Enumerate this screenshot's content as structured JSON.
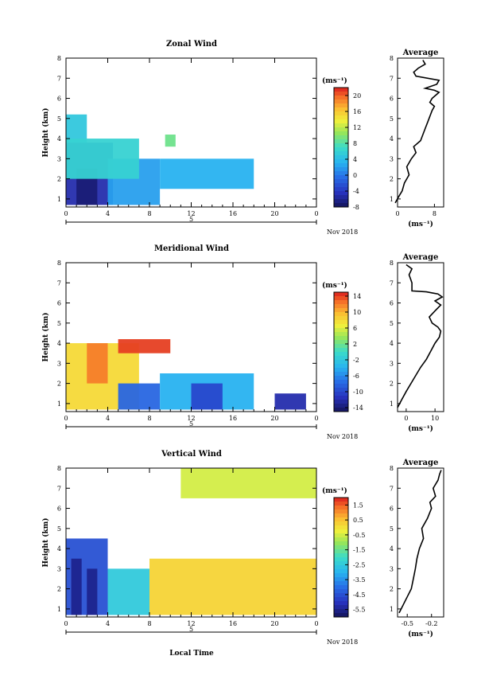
{
  "panels": [
    {
      "title": "Zonal Wind",
      "unit": "(ms⁻¹)",
      "colorbar_ticks": [
        "20",
        "16",
        "12",
        "8",
        "4",
        "0",
        "-4",
        "-8"
      ],
      "avg_title": "Average",
      "avg_xticks": [
        "0",
        "8"
      ],
      "avg_xlabel": "(ms⁻¹)"
    },
    {
      "title": "Meridional Wind",
      "unit": "(ms⁻¹)",
      "colorbar_ticks": [
        "14",
        "10",
        "6",
        "2",
        "-2",
        "-6",
        "-10",
        "-14"
      ],
      "avg_title": "Average",
      "avg_xticks": [
        "0",
        "10"
      ],
      "avg_xlabel": "(ms⁻¹)"
    },
    {
      "title": "Vertical Wind",
      "unit": "(ms⁻¹)",
      "colorbar_ticks": [
        "1.5",
        "0.5",
        "-0.5",
        "-1.5",
        "-2.5",
        "-3.5",
        "-4.5",
        "-5.5"
      ],
      "avg_title": "Average",
      "avg_xticks": [
        "-0.5",
        "-0.2"
      ],
      "avg_xlabel": "(ms⁻¹)"
    }
  ],
  "shared": {
    "ylabel": "Height (km)",
    "yticks": [
      "1",
      "2",
      "3",
      "4",
      "5",
      "6",
      "7",
      "8"
    ],
    "xticks": [
      "0",
      "4",
      "8",
      "12",
      "16",
      "20",
      "0"
    ],
    "day_label": "5",
    "month_label": "Nov 2018",
    "xlabel": "Local Time"
  },
  "chart_data": [
    {
      "type": "heatmap",
      "title": "Zonal Wind",
      "xlabel": "",
      "ylabel": "Height (km)",
      "xlim": [
        0,
        24
      ],
      "ylim": [
        0.6,
        8.0
      ],
      "zlim": [
        -8,
        22
      ],
      "colorbar_ticks": [
        20,
        16,
        12,
        8,
        4,
        0,
        -4,
        -8
      ],
      "regions": [
        {
          "x": [
            0,
            4.5
          ],
          "y": [
            0.7,
            3.8
          ],
          "value": -5
        },
        {
          "x": [
            1,
            3
          ],
          "y": [
            0.7,
            2.5
          ],
          "value": -7
        },
        {
          "x": [
            0,
            2
          ],
          "y": [
            3.8,
            5.2
          ],
          "value": 5
        },
        {
          "x": [
            4,
            9
          ],
          "y": [
            0.7,
            3.0
          ],
          "value": 2
        },
        {
          "x": [
            9,
            18
          ],
          "y": [
            1.5,
            3.0
          ],
          "value": 3
        },
        {
          "x": [
            9.5,
            10.5
          ],
          "y": [
            3.6,
            4.2
          ],
          "value": 9
        },
        {
          "x": [
            0,
            7
          ],
          "y": [
            2.0,
            4.0
          ],
          "value": 6
        }
      ]
    },
    {
      "type": "line",
      "title": "Average",
      "xlabel": "(ms⁻¹)",
      "xlim": [
        0,
        10
      ],
      "ylim": [
        0.6,
        8.0
      ],
      "x": [
        -0.5,
        0.2,
        1.0,
        1.5,
        2.5,
        2.0,
        3.0,
        4.0,
        3.5,
        5.0,
        5.5,
        6.0,
        6.5,
        7.0,
        7.5,
        8.0,
        7.0,
        7.5,
        8.0,
        8.5,
        9.0,
        8.0,
        6.0,
        8.5,
        9.0,
        4.0,
        3.5,
        4.5,
        6.0,
        5.5
      ],
      "y": [
        0.8,
        1.1,
        1.4,
        1.8,
        2.2,
        2.6,
        3.0,
        3.3,
        3.6,
        3.9,
        4.2,
        4.5,
        4.8,
        5.1,
        5.4,
        5.6,
        5.8,
        6.0,
        6.1,
        6.2,
        6.3,
        6.4,
        6.5,
        6.7,
        6.9,
        7.1,
        7.3,
        7.5,
        7.7,
        7.9
      ]
    },
    {
      "type": "heatmap",
      "title": "Meridional Wind",
      "xlabel": "",
      "ylabel": "Height (km)",
      "xlim": [
        0,
        24
      ],
      "ylim": [
        0.6,
        8.0
      ],
      "zlim": [
        -15,
        15
      ],
      "colorbar_ticks": [
        14,
        10,
        6,
        2,
        -2,
        -6,
        -10,
        -14
      ],
      "regions": [
        {
          "x": [
            0,
            7
          ],
          "y": [
            0.7,
            4.0
          ],
          "value": 8
        },
        {
          "x": [
            2,
            4
          ],
          "y": [
            2.0,
            4.0
          ],
          "value": 12
        },
        {
          "x": [
            5,
            9
          ],
          "y": [
            0.7,
            2.0
          ],
          "value": -8
        },
        {
          "x": [
            9,
            18
          ],
          "y": [
            0.7,
            2.5
          ],
          "value": -4
        },
        {
          "x": [
            12,
            15
          ],
          "y": [
            0.7,
            2.0
          ],
          "value": -10
        },
        {
          "x": [
            5,
            10
          ],
          "y": [
            3.5,
            4.2
          ],
          "value": 14
        },
        {
          "x": [
            20,
            23
          ],
          "y": [
            0.7,
            1.5
          ],
          "value": -12
        }
      ]
    },
    {
      "type": "line",
      "title": "Average",
      "xlabel": "(ms⁻¹)",
      "xlim": [
        -3,
        13
      ],
      "ylim": [
        0.6,
        8.0
      ],
      "x": [
        -3.0,
        -1.5,
        0.0,
        2.5,
        5.0,
        7.0,
        8.5,
        10.0,
        11.5,
        12.0,
        11.0,
        9.0,
        8.0,
        10.0,
        12.0,
        10.0,
        12.5,
        11.0,
        9.0,
        7.0,
        2.0,
        2.0,
        1.0,
        2.0,
        0.0
      ],
      "y": [
        0.8,
        1.2,
        1.6,
        2.2,
        2.8,
        3.2,
        3.6,
        4.0,
        4.3,
        4.6,
        4.8,
        5.0,
        5.3,
        5.6,
        5.9,
        6.1,
        6.3,
        6.45,
        6.5,
        6.55,
        6.6,
        7.0,
        7.4,
        7.7,
        7.9
      ]
    },
    {
      "type": "heatmap",
      "title": "Vertical Wind",
      "xlabel": "Local Time",
      "ylabel": "Height (km)",
      "xlim": [
        0,
        24
      ],
      "ylim": [
        0.6,
        8.0
      ],
      "zlim": [
        -6,
        2
      ],
      "colorbar_ticks": [
        1.5,
        0.5,
        -0.5,
        -1.5,
        -2.5,
        -3.5,
        -4.5,
        -5.5
      ],
      "regions": [
        {
          "x": [
            0,
            4
          ],
          "y": [
            0.7,
            4.5
          ],
          "value": -4.5
        },
        {
          "x": [
            0.5,
            1.5
          ],
          "y": [
            0.7,
            3.5
          ],
          "value": -5.5
        },
        {
          "x": [
            2,
            3
          ],
          "y": [
            0.7,
            3.0
          ],
          "value": -5.5
        },
        {
          "x": [
            4,
            8
          ],
          "y": [
            0.7,
            3.0
          ],
          "value": -2.5
        },
        {
          "x": [
            8,
            24
          ],
          "y": [
            0.7,
            3.5
          ],
          "value": 0.2
        },
        {
          "x": [
            11,
            24
          ],
          "y": [
            6.5,
            8.0
          ],
          "value": -0.5
        }
      ]
    },
    {
      "type": "line",
      "title": "Average",
      "xlabel": "(ms⁻¹)",
      "xlim": [
        -0.62,
        -0.05
      ],
      "ylim": [
        0.6,
        8.0
      ],
      "x": [
        -0.6,
        -0.55,
        -0.5,
        -0.45,
        -0.42,
        -0.4,
        -0.38,
        -0.35,
        -0.3,
        -0.32,
        -0.25,
        -0.2,
        -0.22,
        -0.15,
        -0.18,
        -0.12,
        -0.1,
        -0.08
      ],
      "y": [
        0.8,
        1.2,
        1.6,
        2.0,
        2.6,
        3.0,
        3.5,
        4.0,
        4.5,
        5.0,
        5.5,
        6.0,
        6.3,
        6.6,
        7.0,
        7.4,
        7.7,
        7.9
      ]
    }
  ]
}
